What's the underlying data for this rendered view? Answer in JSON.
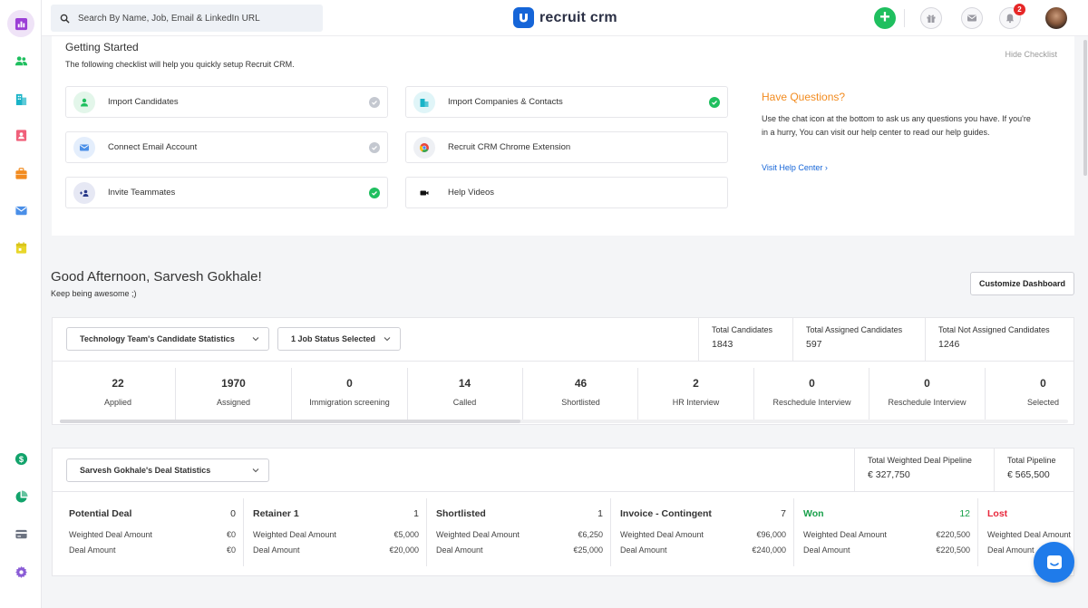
{
  "sidebar": {
    "items": [
      {
        "name": "sidebar-item-dashboard",
        "icon": "chart-icon",
        "color": "#9b3fd6",
        "active": true
      },
      {
        "name": "sidebar-item-candidates",
        "icon": "people-icon",
        "color": "#1fbf5f"
      },
      {
        "name": "sidebar-item-companies",
        "icon": "building-icon",
        "color": "#19b3c7"
      },
      {
        "name": "sidebar-item-contacts",
        "icon": "contact-card-icon",
        "color": "#f0607a"
      },
      {
        "name": "sidebar-item-jobs",
        "icon": "briefcase-icon",
        "color": "#f28b1f"
      },
      {
        "name": "sidebar-item-email",
        "icon": "mail-icon",
        "color": "#4a8fe8"
      },
      {
        "name": "sidebar-item-calendar",
        "icon": "calendar-icon",
        "color": "#e8d62a"
      },
      {
        "name": "sidebar-item-deals",
        "icon": "dollar-icon",
        "color": "#12a36b"
      },
      {
        "name": "sidebar-item-reports",
        "icon": "pie-chart-icon",
        "color": "#12a36b"
      },
      {
        "name": "sidebar-item-billing",
        "icon": "credit-card-icon",
        "color": "#6b7280"
      },
      {
        "name": "sidebar-item-settings",
        "icon": "gear-icon",
        "color": "#8a5cd6"
      }
    ]
  },
  "topbar": {
    "search_placeholder": "Search By Name, Job, Email & LinkedIn URL",
    "logo_text": "recruit crm",
    "add_label": "+",
    "notification_count": "2",
    "accent": "#1565d8",
    "add_color": "#1fbf5f"
  },
  "getting_started": {
    "title": "Getting Started",
    "subtitle": "The following checklist will help you quickly setup Recruit CRM.",
    "hide_label": "Hide Checklist",
    "items": [
      {
        "label": "Import Candidates",
        "icon": "person-icon",
        "status": "pending"
      },
      {
        "label": "Import Companies & Contacts",
        "icon": "building-icon",
        "status": "done"
      },
      {
        "label": "Connect Email Account",
        "icon": "mail-icon",
        "status": "pending"
      },
      {
        "label": "Recruit CRM Chrome Extension",
        "icon": "chrome-icon",
        "status": "none"
      },
      {
        "label": "Invite Teammates",
        "icon": "group-add-icon",
        "status": "done"
      },
      {
        "label": "Help Videos",
        "icon": "video-camera-icon",
        "status": "none"
      }
    ],
    "questions": {
      "title": "Have Questions?",
      "text": "Use the chat icon at the bottom to ask us any questions you have. If you're in a hurry, You can visit our help center to read our help guides.",
      "link": "Visit Help Center ›"
    }
  },
  "greeting": {
    "title": "Good Afternoon, Sarvesh Gokhale!",
    "subtitle": "Keep being awesome ;)",
    "customize_label": "Customize Dashboard"
  },
  "candidate_stats": {
    "team_dropdown": "Technology Team's Candidate Statistics",
    "status_dropdown": "1 Job Status Selected",
    "totals": [
      {
        "label": "Total Candidates",
        "value": "1843"
      },
      {
        "label": "Total Assigned Candidates",
        "value": "597"
      },
      {
        "label": "Total Not Assigned Candidates",
        "value": "1246"
      }
    ],
    "stages": [
      {
        "value": "22",
        "label": "Applied"
      },
      {
        "value": "1970",
        "label": "Assigned"
      },
      {
        "value": "0",
        "label": "Immigration screening"
      },
      {
        "value": "14",
        "label": "Called"
      },
      {
        "value": "46",
        "label": "Shortlisted"
      },
      {
        "value": "2",
        "label": "HR Interview"
      },
      {
        "value": "0",
        "label": "Reschedule Interview"
      },
      {
        "value": "0",
        "label": "Reschedule Interview"
      },
      {
        "value": "0",
        "label": "Selected"
      }
    ]
  },
  "deal_stats": {
    "dropdown": "Sarvesh Gokhale's Deal Statistics",
    "totals": [
      {
        "label": "Total Weighted Deal Pipeline",
        "value": "€ 327,750"
      },
      {
        "label": "Total Pipeline",
        "value": "€ 565,500"
      }
    ],
    "weighted_label": "Weighted Deal Amount",
    "amount_label": "Deal Amount",
    "stages": [
      {
        "name": "Potential Deal",
        "count": "0",
        "weighted": "€0",
        "amount": "€0",
        "color": "#333333"
      },
      {
        "name": "Retainer 1",
        "count": "1",
        "weighted": "€5,000",
        "amount": "€20,000",
        "color": "#333333"
      },
      {
        "name": "Shortlisted",
        "count": "1",
        "weighted": "€6,250",
        "amount": "€25,000",
        "color": "#333333"
      },
      {
        "name": "Invoice - Contingent",
        "count": "7",
        "weighted": "€96,000",
        "amount": "€240,000",
        "color": "#333333"
      },
      {
        "name": "Won",
        "count": "12",
        "weighted": "€220,500",
        "amount": "€220,500",
        "color": "#18a04a"
      },
      {
        "name": "Lost",
        "count": "",
        "weighted": "",
        "amount": "",
        "color": "#e8283c"
      }
    ]
  }
}
